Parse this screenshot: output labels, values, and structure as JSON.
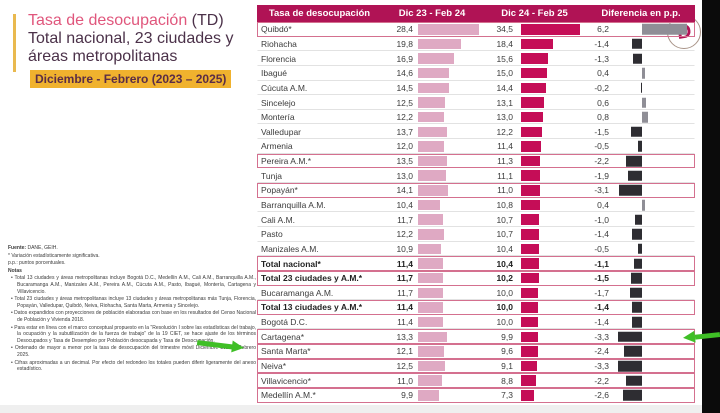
{
  "colors": {
    "crimson": "#B01355",
    "bar_prev": "#DFA9C3",
    "bar_curr": "#C50D57",
    "diff_pos": "#8F8E96",
    "diff_neg": "#2E2D32",
    "yellow": "#F0B22E",
    "green": "#3FBF26",
    "box_border": "#D4708F",
    "gold": "#E9B94F",
    "title_pink": "#E0567C",
    "title_dark": "#4B3149"
  },
  "logo": {
    "letter": "D"
  },
  "title": {
    "line1_accent": "Tasa de desocupación",
    "line1_rest": " (TD)",
    "line2": "Total nacional, 23 ciudades y",
    "line3": "áreas metropolitanas",
    "period": "Diciembre - Febrero (2023 – 2025)"
  },
  "notes": {
    "source_label": "Fuente:",
    "source_text": " DANE, GEIH.",
    "sig": "* Variación estadísticamente significativa.",
    "pp": "p.p.: puntos porcentuales.",
    "notas_label": "Notas",
    "bullets": [
      "• Total 13 ciudades y áreas metropolitanas incluye Bogotá D.C., Medellín A.M., Cali A.M., Barranquilla A.M., Bucaramanga A.M., Manizales A.M., Pereira A.M., Cúcuta A.M., Pasto, Ibagué, Montería, Cartagena y Villavicencio.",
      "• Total 23 ciudades y áreas metropolitanas incluye 13 ciudades y áreas metropolitanas más Tunja, Florencia, Popayán, Valledupar, Quibdó, Neiva, Riohacha, Santa Marta, Armenia y Sincelejo.",
      "• Datos expandidos con proyecciones de población elaboradas con base en los resultados del Censo Nacional de Población y Vivienda 2018.",
      "• Para estar en línea con el marco conceptual propuesto en la “Resolución I sobre las estadísticas del trabajo, la ocupación y la subutilización de la fuerza de trabajo” de la 19 CIET, se hace ajuste de los términos Desocupados y Tasa de Desempleo por Población desocupada y Tasa de Desocupación.",
      "• Ordenado de mayor a menor por la tasa de desocupación del trimestre móvil Diciembre 2024 – Febrero 2025.",
      "• Cifras aproximadas a un decimal. Por efecto del redondeo los totales pueden diferir ligeramente del anexo estadístico."
    ]
  },
  "table": {
    "columns": [
      "Tasa de desocupación",
      "Dic 23 - Feb 24",
      "Dic 24 - Feb 25",
      "Diferencia en p.p."
    ],
    "rows": [
      {
        "name": "Quibdó*",
        "prev": "28,4",
        "curr": "34,5",
        "diff": "6,2",
        "sig": true,
        "bold": false
      },
      {
        "name": "Riohacha",
        "prev": "19,8",
        "curr": "18,4",
        "diff": "-1,4",
        "sig": false,
        "bold": false
      },
      {
        "name": "Florencia",
        "prev": "16,9",
        "curr": "15,6",
        "diff": "-1,3",
        "sig": false,
        "bold": false
      },
      {
        "name": "Ibagué",
        "prev": "14,6",
        "curr": "15,0",
        "diff": "0,4",
        "sig": false,
        "bold": false
      },
      {
        "name": "Cúcuta A.M.",
        "prev": "14,5",
        "curr": "14,4",
        "diff": "-0,2",
        "sig": false,
        "bold": false
      },
      {
        "name": "Sincelejo",
        "prev": "12,5",
        "curr": "13,1",
        "diff": "0,6",
        "sig": false,
        "bold": false
      },
      {
        "name": "Montería",
        "prev": "12,2",
        "curr": "13,0",
        "diff": "0,8",
        "sig": false,
        "bold": false
      },
      {
        "name": "Valledupar",
        "prev": "13,7",
        "curr": "12,2",
        "diff": "-1,5",
        "sig": false,
        "bold": false
      },
      {
        "name": "Armenia",
        "prev": "12,0",
        "curr": "11,4",
        "diff": "-0,5",
        "sig": false,
        "bold": false
      },
      {
        "name": "Pereira A.M.*",
        "prev": "13,5",
        "curr": "11,3",
        "diff": "-2,2",
        "sig": true,
        "bold": false
      },
      {
        "name": "Tunja",
        "prev": "13,0",
        "curr": "11,1",
        "diff": "-1,9",
        "sig": false,
        "bold": false
      },
      {
        "name": "Popayán*",
        "prev": "14,1",
        "curr": "11,0",
        "diff": "-3,1",
        "sig": true,
        "bold": false
      },
      {
        "name": "Barranquilla A.M.",
        "prev": "10,4",
        "curr": "10,8",
        "diff": "0,4",
        "sig": false,
        "bold": false
      },
      {
        "name": "Cali A.M.",
        "prev": "11,7",
        "curr": "10,7",
        "diff": "-1,0",
        "sig": false,
        "bold": false
      },
      {
        "name": "Pasto",
        "prev": "12,2",
        "curr": "10,7",
        "diff": "-1,4",
        "sig": false,
        "bold": false
      },
      {
        "name": "Manizales A.M.",
        "prev": "10,9",
        "curr": "10,4",
        "diff": "-0,5",
        "sig": false,
        "bold": false
      },
      {
        "name": "Total nacional*",
        "prev": "11,4",
        "curr": "10,4",
        "diff": "-1,1",
        "sig": true,
        "bold": true
      },
      {
        "name": "Total 23 ciudades y A.M.*",
        "prev": "11,7",
        "curr": "10,2",
        "diff": "-1,5",
        "sig": true,
        "bold": true
      },
      {
        "name": "Bucaramanga A.M.",
        "prev": "11,7",
        "curr": "10,0",
        "diff": "-1,7",
        "sig": false,
        "bold": false
      },
      {
        "name": "Total 13 ciudades y A.M.*",
        "prev": "11,4",
        "curr": "10,0",
        "diff": "-1,4",
        "sig": true,
        "bold": true
      },
      {
        "name": "Bogotá D.C.",
        "prev": "11,4",
        "curr": "10,0",
        "diff": "-1,4",
        "sig": false,
        "bold": false
      },
      {
        "name": "Cartagena*",
        "prev": "13,3",
        "curr": "9,9",
        "diff": "-3,3",
        "sig": true,
        "bold": false
      },
      {
        "name": "Santa Marta*",
        "prev": "12,1",
        "curr": "9,6",
        "diff": "-2,4",
        "sig": true,
        "bold": false
      },
      {
        "name": "Neiva*",
        "prev": "12,5",
        "curr": "9,1",
        "diff": "-3,3",
        "sig": true,
        "bold": false
      },
      {
        "name": "Villavicencio*",
        "prev": "11,0",
        "curr": "8,8",
        "diff": "-2,2",
        "sig": true,
        "bold": false
      },
      {
        "name": "Medellín A.M.*",
        "prev": "9,9",
        "curr": "7,3",
        "diff": "-2,6",
        "sig": true,
        "bold": false
      }
    ]
  },
  "chart_data": {
    "type": "bar",
    "title": "Tasa de desocupación (TD) Total nacional, 23 ciudades y áreas metropolitanas, Diciembre - Febrero (2023 – 2025)",
    "categories": [
      "Quibdó*",
      "Riohacha",
      "Florencia",
      "Ibagué",
      "Cúcuta A.M.",
      "Sincelejo",
      "Montería",
      "Valledupar",
      "Armenia",
      "Pereira A.M.*",
      "Tunja",
      "Popayán*",
      "Barranquilla A.M.",
      "Cali A.M.",
      "Pasto",
      "Manizales A.M.",
      "Total nacional*",
      "Total 23 ciudades y A.M.*",
      "Bucaramanga A.M.",
      "Total 13 ciudades y A.M.*",
      "Bogotá D.C.",
      "Cartagena*",
      "Santa Marta*",
      "Neiva*",
      "Villavicencio*",
      "Medellín A.M.*"
    ],
    "series": [
      {
        "name": "Dic 23 - Feb 24",
        "values": [
          28.4,
          19.8,
          16.9,
          14.6,
          14.5,
          12.5,
          12.2,
          13.7,
          12.0,
          13.5,
          13.0,
          14.1,
          10.4,
          11.7,
          12.2,
          10.9,
          11.4,
          11.7,
          11.7,
          11.4,
          11.4,
          13.3,
          12.1,
          12.5,
          11.0,
          9.9
        ]
      },
      {
        "name": "Dic 24 - Feb 25",
        "values": [
          34.5,
          18.4,
          15.6,
          15.0,
          14.4,
          13.1,
          13.0,
          12.2,
          11.4,
          11.3,
          11.1,
          11.0,
          10.8,
          10.7,
          10.7,
          10.4,
          10.4,
          10.2,
          10.0,
          10.0,
          10.0,
          9.9,
          9.6,
          9.1,
          8.8,
          7.3
        ]
      },
      {
        "name": "Diferencia en p.p.",
        "values": [
          6.2,
          -1.4,
          -1.3,
          0.4,
          -0.2,
          0.6,
          0.8,
          -1.5,
          -0.5,
          -2.2,
          -1.9,
          -3.1,
          0.4,
          -1.0,
          -1.4,
          -0.5,
          -1.1,
          -1.5,
          -1.7,
          -1.4,
          -1.4,
          -3.3,
          -2.4,
          -3.3,
          -2.2,
          -2.6
        ]
      }
    ],
    "notes": "* Variación estadísticamente significativa; ordenado de mayor a menor por Dic 24 - Feb 25; filas con recuadro = variación significativa; flechas verdes señalan Cartagena*",
    "legend_position": "table columns",
    "grid": false
  }
}
